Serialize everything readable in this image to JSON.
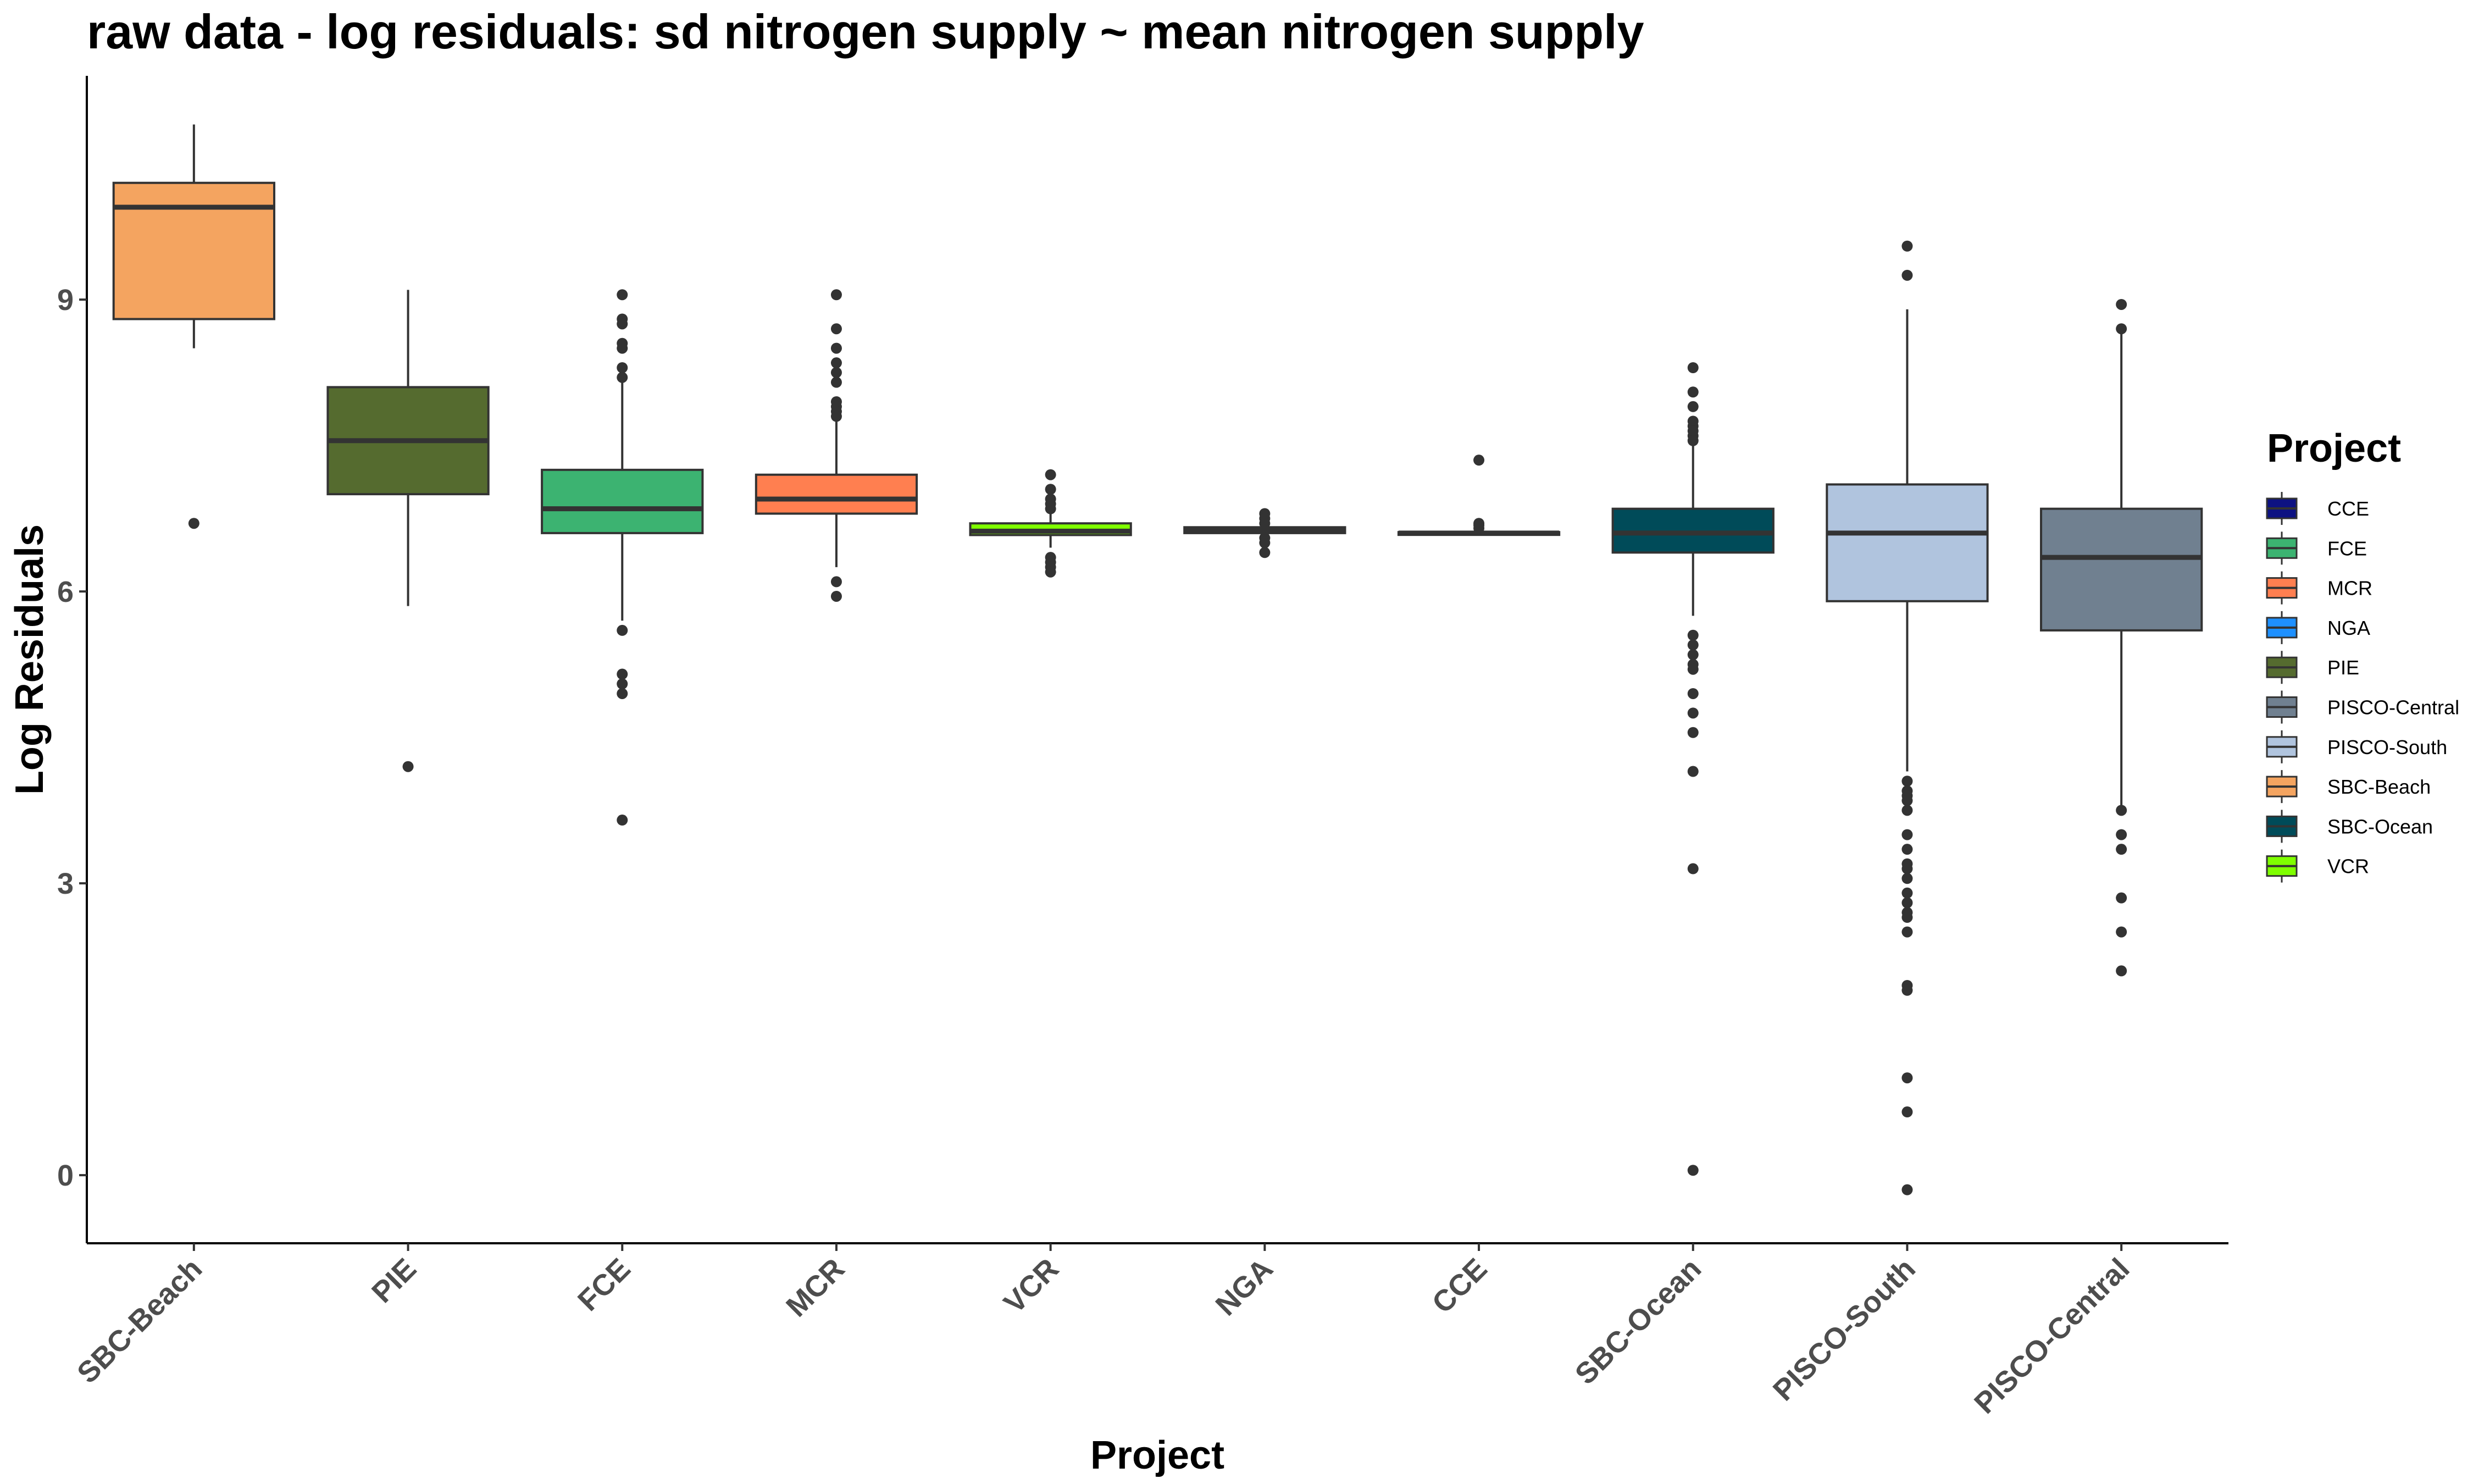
{
  "chart_data": {
    "type": "boxplot",
    "title": "raw data - log residuals: sd nitrogen supply ~ mean nitrogen supply",
    "xlabel": "Project",
    "ylabel": "Log Residuals",
    "ylim": [
      -0.7,
      11.3
    ],
    "yticks": [
      0,
      3,
      6,
      9
    ],
    "grid": false,
    "legend": {
      "title": "Project",
      "position": "right",
      "entries": [
        {
          "label": "CCE",
          "color": "#0d1282"
        },
        {
          "label": "FCE",
          "color": "#3cb371"
        },
        {
          "label": "MCR",
          "color": "#ff7f50"
        },
        {
          "label": "NGA",
          "color": "#1e90ff"
        },
        {
          "label": "PIE",
          "color": "#556b2f"
        },
        {
          "label": "PISCO-Central",
          "color": "#708090"
        },
        {
          "label": "PISCO-South",
          "color": "#b0c4de"
        },
        {
          "label": "SBC-Beach",
          "color": "#f4a460"
        },
        {
          "label": "SBC-Ocean",
          "color": "#004b59"
        },
        {
          "label": "VCR",
          "color": "#7fff00"
        }
      ]
    },
    "categories": [
      "SBC-Beach",
      "PIE",
      "FCE",
      "MCR",
      "VCR",
      "NGA",
      "CCE",
      "SBC-Ocean",
      "PISCO-South",
      "PISCO-Central"
    ],
    "boxes": [
      {
        "name": "SBC-Beach",
        "color": "#f4a460",
        "whisker_low": 8.5,
        "q1": 8.8,
        "median": 9.95,
        "q3": 10.2,
        "whisker_high": 10.8,
        "outliers": [
          6.7
        ]
      },
      {
        "name": "PIE",
        "color": "#556b2f",
        "whisker_low": 5.85,
        "q1": 7.0,
        "median": 7.55,
        "q3": 8.1,
        "whisker_high": 9.1,
        "outliers": [
          4.2
        ]
      },
      {
        "name": "FCE",
        "color": "#3cb371",
        "whisker_low": 5.7,
        "q1": 6.6,
        "median": 6.85,
        "q3": 7.25,
        "whisker_high": 8.2,
        "outliers": [
          9.05,
          8.8,
          8.75,
          8.55,
          8.5,
          8.3,
          8.2,
          5.6,
          5.15,
          5.05,
          4.95,
          3.65
        ]
      },
      {
        "name": "MCR",
        "color": "#ff7f50",
        "whisker_low": 6.25,
        "q1": 6.8,
        "median": 6.95,
        "q3": 7.2,
        "whisker_high": 7.75,
        "outliers": [
          9.05,
          8.7,
          8.5,
          8.35,
          8.25,
          8.15,
          7.95,
          7.9,
          7.85,
          7.8,
          6.1,
          5.95
        ]
      },
      {
        "name": "VCR",
        "color": "#7fff00",
        "whisker_low": 6.45,
        "q1": 6.58,
        "median": 6.62,
        "q3": 6.7,
        "whisker_high": 6.85,
        "outliers": [
          7.2,
          7.05,
          6.95,
          6.9,
          6.85,
          6.35,
          6.3,
          6.25,
          6.2
        ]
      },
      {
        "name": "NGA",
        "color": "#1e90ff",
        "whisker_low": 6.58,
        "q1": 6.6,
        "median": 6.63,
        "q3": 6.66,
        "whisker_high": 6.7,
        "outliers": [
          6.8,
          6.75,
          6.7,
          6.55,
          6.5,
          6.4
        ]
      },
      {
        "name": "CCE",
        "color": "#0d1282",
        "whisker_low": 6.6,
        "q1": 6.6,
        "median": 6.6,
        "q3": 6.61,
        "whisker_high": 6.62,
        "outliers": [
          7.35,
          6.7,
          6.68,
          6.65
        ]
      },
      {
        "name": "SBC-Ocean",
        "color": "#004b59",
        "whisker_low": 5.75,
        "q1": 6.4,
        "median": 6.6,
        "q3": 6.85,
        "whisker_high": 7.5,
        "outliers": [
          8.3,
          8.05,
          7.9,
          7.75,
          7.7,
          7.65,
          7.6,
          7.55,
          5.55,
          5.45,
          5.35,
          5.25,
          5.2,
          4.95,
          4.75,
          4.55,
          4.15,
          3.15,
          0.05
        ]
      },
      {
        "name": "PISCO-South",
        "color": "#b0c4de",
        "whisker_low": 4.15,
        "q1": 5.9,
        "median": 6.6,
        "q3": 7.1,
        "whisker_high": 8.9,
        "outliers": [
          9.55,
          9.25,
          4.05,
          3.95,
          3.9,
          3.85,
          3.75,
          3.5,
          3.35,
          3.2,
          3.15,
          3.05,
          2.9,
          2.8,
          2.7,
          2.65,
          2.5,
          1.95,
          1.9,
          1.0,
          0.65,
          -0.15
        ]
      },
      {
        "name": "PISCO-Central",
        "color": "#708090",
        "whisker_low": 3.8,
        "q1": 5.6,
        "median": 6.35,
        "q3": 6.85,
        "whisker_high": 8.7,
        "outliers": [
          8.95,
          8.7,
          3.75,
          3.5,
          3.35,
          2.85,
          2.5,
          2.1
        ]
      }
    ]
  }
}
